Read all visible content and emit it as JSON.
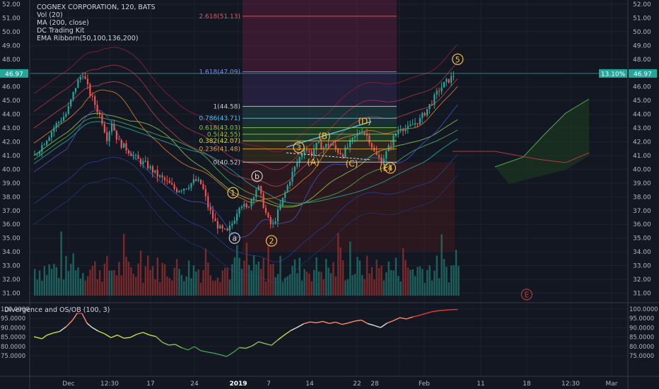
{
  "legend": {
    "title": "COGNEX CORPORATION, 120, BATS",
    "indicators": [
      "Vol (20)",
      "MA (200, close)",
      "DC Trading Kit",
      "EMA Ribborn(50,100,136,200)"
    ]
  },
  "oscillator": {
    "title": "Divergence and OS/OB (100, 3)"
  },
  "colors": {
    "background": "#131722",
    "up": "#26a69a",
    "down": "#ef5350",
    "grid": "#1e2230",
    "price_tag": "#26a69a"
  },
  "chart_data": [
    {
      "type": "candlestick",
      "title": "COGNEX CORPORATION, 120, BATS",
      "x_ticks": [
        "Dec",
        "12:30",
        "17",
        "24",
        "2019",
        "7",
        "14",
        "22",
        "28",
        "Feb",
        "11",
        "18",
        "12:30",
        "Mar"
      ],
      "y_ticks": [
        "52.00",
        "51.00",
        "50.00",
        "49.00",
        "48.00",
        "47.00",
        "46.00",
        "45.00",
        "44.00",
        "43.00",
        "42.00",
        "41.00",
        "40.00",
        "39.00",
        "38.00",
        "37.00",
        "36.00",
        "35.00",
        "34.00",
        "33.00",
        "32.00",
        "31.00"
      ],
      "ylim": [
        30.5,
        52.3
      ],
      "last_price": "46.97",
      "change_pct": "13.10%",
      "close_path": [
        [
          0,
          41.0
        ],
        [
          6,
          42.0
        ],
        [
          13,
          43.2
        ],
        [
          20,
          44.1
        ],
        [
          26,
          46.2
        ],
        [
          30,
          47.0
        ],
        [
          34,
          45.6
        ],
        [
          38,
          44.6
        ],
        [
          42,
          43.5
        ],
        [
          45,
          42.3
        ],
        [
          48,
          43.4
        ],
        [
          52,
          42.0
        ],
        [
          58,
          41.4
        ],
        [
          64,
          40.7
        ],
        [
          70,
          40.3
        ],
        [
          76,
          39.6
        ],
        [
          82,
          39.1
        ],
        [
          88,
          38.5
        ],
        [
          94,
          38.7
        ],
        [
          100,
          39.2
        ],
        [
          104,
          38.9
        ],
        [
          108,
          37.3
        ],
        [
          112,
          36.2
        ],
        [
          116,
          35.6
        ],
        [
          120,
          35.4
        ],
        [
          124,
          36.3
        ],
        [
          128,
          37.6
        ],
        [
          132,
          37.1
        ],
        [
          136,
          38.1
        ],
        [
          139,
          38.8
        ],
        [
          142,
          37.6
        ],
        [
          145,
          36.4
        ],
        [
          148,
          35.8
        ],
        [
          152,
          37.0
        ],
        [
          156,
          38.3
        ],
        [
          160,
          39.6
        ],
        [
          164,
          40.6
        ],
        [
          168,
          41.6
        ],
        [
          172,
          41.1
        ],
        [
          176,
          41.8
        ],
        [
          180,
          41.6
        ],
        [
          184,
          41.9
        ],
        [
          188,
          41.4
        ],
        [
          192,
          41.1
        ],
        [
          196,
          41.8
        ],
        [
          200,
          42.4
        ],
        [
          204,
          42.9
        ],
        [
          208,
          42.3
        ],
        [
          212,
          41.1
        ],
        [
          216,
          40.6
        ],
        [
          220,
          41.4
        ],
        [
          224,
          42.4
        ],
        [
          228,
          43.1
        ],
        [
          232,
          42.9
        ],
        [
          236,
          43.3
        ],
        [
          240,
          43.6
        ],
        [
          244,
          44.3
        ],
        [
          248,
          45.0
        ],
        [
          252,
          45.8
        ],
        [
          256,
          46.3
        ],
        [
          260,
          46.7
        ],
        [
          262,
          46.97
        ]
      ],
      "fib_levels": [
        {
          "label": "2.618(51.13)",
          "value": 51.13
        },
        {
          "label": "1.618(47.09)",
          "value": 47.09
        },
        {
          "label": "1(44.58)",
          "value": 44.58
        },
        {
          "label": "0.786(43.71)",
          "value": 43.71
        },
        {
          "label": "0.618(43.03)",
          "value": 43.03
        },
        {
          "label": "0.5(42.55)",
          "value": 42.55
        },
        {
          "label": "0.382(42.07)",
          "value": 42.07
        },
        {
          "label": "0.236(41.48)",
          "value": 41.48
        },
        {
          "label": "0(40.52)",
          "value": 40.52
        }
      ],
      "wave_labels": [
        {
          "text": "1",
          "i": 124,
          "y": 38.3,
          "style": "circle"
        },
        {
          "text": "a",
          "i": 125,
          "y": 35.0,
          "style": "circle"
        },
        {
          "text": "b",
          "i": 139,
          "y": 39.5,
          "style": "circle"
        },
        {
          "text": "2",
          "i": 148,
          "y": 34.8,
          "style": "circle"
        },
        {
          "text": "3",
          "i": 165,
          "y": 41.6,
          "style": "circle"
        },
        {
          "text": "(A)",
          "i": 174,
          "y": 40.5,
          "style": "plain"
        },
        {
          "text": "(B)",
          "i": 181,
          "y": 42.4,
          "style": "plain"
        },
        {
          "text": "(C)",
          "i": 198,
          "y": 40.4,
          "style": "plain"
        },
        {
          "text": "(D)",
          "i": 206,
          "y": 43.5,
          "style": "plain"
        },
        {
          "text": "(E)",
          "i": 219,
          "y": 40.1,
          "style": "plain"
        },
        {
          "text": "4",
          "i": 222,
          "y": 40.1,
          "style": "circle"
        },
        {
          "text": "5",
          "i": 264,
          "y": 48.0,
          "style": "circle"
        },
        {
          "text": "E",
          "i": 307,
          "y": 30.9,
          "style": "circle-red"
        }
      ],
      "volume_bars": "estimated relative volumes, shown as histogram"
    },
    {
      "type": "line",
      "title": "Divergence and OS/OB (100, 3)",
      "y_ticks": [
        "100.0000",
        "95.0000",
        "90.0000",
        "85.0000",
        "80.0000",
        "75.0000"
      ],
      "ylim": [
        72.5,
        101
      ],
      "values": [
        [
          0,
          85.2
        ],
        [
          5,
          84.1
        ],
        [
          8,
          86.0
        ],
        [
          12,
          87.2
        ],
        [
          16,
          88.0
        ],
        [
          20,
          90.5
        ],
        [
          24,
          94.0
        ],
        [
          27,
          97.8
        ],
        [
          30,
          97.6
        ],
        [
          33,
          92.5
        ],
        [
          36,
          90.3
        ],
        [
          40,
          88.2
        ],
        [
          44,
          86.8
        ],
        [
          48,
          84.7
        ],
        [
          52,
          86.1
        ],
        [
          56,
          84.4
        ],
        [
          60,
          84.8
        ],
        [
          64,
          86.5
        ],
        [
          68,
          87.5
        ],
        [
          72,
          86.1
        ],
        [
          76,
          85.3
        ],
        [
          80,
          82.2
        ],
        [
          84,
          80.7
        ],
        [
          88,
          81.1
        ],
        [
          92,
          79.3
        ],
        [
          96,
          78.1
        ],
        [
          100,
          79.9
        ],
        [
          104,
          77.7
        ],
        [
          108,
          77.0
        ],
        [
          112,
          76.4
        ],
        [
          116,
          75.6
        ],
        [
          120,
          74.6
        ],
        [
          124,
          76.7
        ],
        [
          128,
          79.4
        ],
        [
          132,
          79.0
        ],
        [
          136,
          80.3
        ],
        [
          140,
          82.5
        ],
        [
          144,
          81.5
        ],
        [
          148,
          80.6
        ],
        [
          152,
          83.5
        ],
        [
          156,
          86.1
        ],
        [
          160,
          88.5
        ],
        [
          164,
          90.2
        ],
        [
          168,
          92.1
        ],
        [
          172,
          93.1
        ],
        [
          176,
          92.7
        ],
        [
          180,
          93.4
        ],
        [
          184,
          92.3
        ],
        [
          188,
          93.0
        ],
        [
          192,
          91.8
        ],
        [
          196,
          92.6
        ],
        [
          200,
          93.6
        ],
        [
          204,
          94.1
        ],
        [
          208,
          92.2
        ],
        [
          212,
          91.2
        ],
        [
          216,
          90.1
        ],
        [
          220,
          92.5
        ],
        [
          224,
          93.8
        ],
        [
          228,
          95.4
        ],
        [
          232,
          94.7
        ],
        [
          236,
          95.8
        ],
        [
          240,
          96.6
        ],
        [
          244,
          97.6
        ],
        [
          248,
          98.6
        ],
        [
          252,
          99.1
        ],
        [
          256,
          99.4
        ],
        [
          260,
          99.7
        ],
        [
          264,
          99.8
        ]
      ]
    }
  ]
}
